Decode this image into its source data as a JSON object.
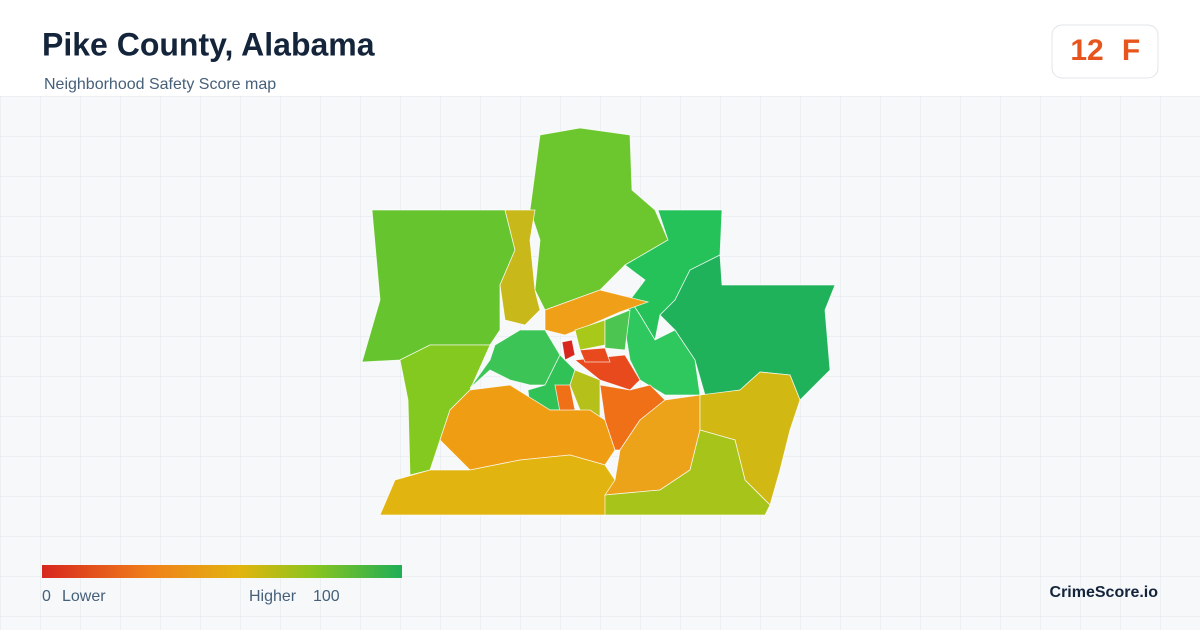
{
  "header": {
    "title": "Pike County, Alabama",
    "subtitle": "Neighborhood Safety Score map"
  },
  "score": {
    "value": "12",
    "grade": "F"
  },
  "legend": {
    "min": "0",
    "min_label": "Lower",
    "max_label": "Higher",
    "max": "100"
  },
  "brand": "CrimeScore.io"
}
